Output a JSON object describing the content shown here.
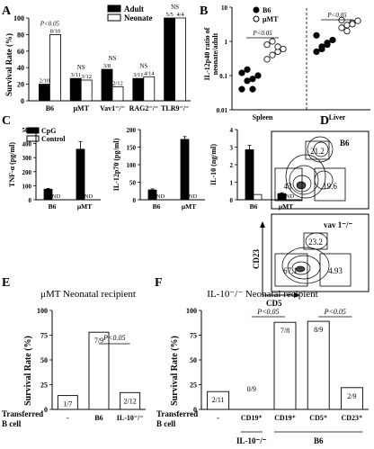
{
  "panels": {
    "a": "A",
    "b": "B",
    "c": "C",
    "d": "D",
    "e": "E",
    "f": "F"
  },
  "chart_data": [
    {
      "id": "A",
      "type": "bar",
      "ylabel": "Survival Rate (%)",
      "ylim": [
        0,
        100
      ],
      "yticks": [
        "0",
        "20",
        "40",
        "60",
        "80",
        "100"
      ],
      "categories": [
        "B6",
        "μMT",
        "Vav1⁻/⁻",
        "RAG2⁻/⁻",
        "TLR9⁻/⁻"
      ],
      "series": [
        {
          "name": "Adult",
          "color": "#000000",
          "values": [
            20,
            27,
            38,
            27,
            100
          ],
          "labels": [
            "2/10",
            "3/11",
            "3/8",
            "3/11",
            "5/5"
          ]
        },
        {
          "name": "Neonate",
          "color": "#ffffff",
          "values": [
            80,
            25,
            17,
            29,
            100
          ],
          "labels": [
            "8/10",
            "3/12",
            "2/12",
            "4/14",
            "4/4"
          ]
        }
      ],
      "annotations": [
        "P<0.05",
        "NS",
        "NS",
        "NS",
        "NS"
      ]
    },
    {
      "id": "B",
      "type": "scatter",
      "ylabel": "IL-12p40 ratio of neonate/adult",
      "yscale": "log",
      "yticks": [
        "0.01",
        "0.1",
        "1",
        "10"
      ],
      "categories": [
        "Spleen",
        "Liver"
      ],
      "series": [
        {
          "name": "B6",
          "marker": "filled",
          "values_spleen": [
            0.04,
            0.07,
            0.08,
            0.1,
            0.12,
            0.15,
            0.04
          ],
          "values_liver": [
            0.5,
            0.7,
            0.9,
            1.1,
            1.5,
            0.6,
            0.8
          ]
        },
        {
          "name": "μMT",
          "marker": "open",
          "values_spleen": [
            0.3,
            0.4,
            0.5,
            0.6,
            0.8,
            1.0,
            0.7
          ],
          "values_liver": [
            2.5,
            3.0,
            3.5,
            4.0,
            4.2,
            2.0,
            3.2
          ]
        }
      ],
      "annotations": [
        "P<0.05",
        "P<0.05"
      ]
    },
    {
      "id": "C1",
      "type": "bar",
      "ylabel": "TNF-α (pg/ml)",
      "ylim": [
        0,
        500
      ],
      "yticks": [
        "0",
        "100",
        "200",
        "300",
        "400",
        "500"
      ],
      "categories": [
        "B6",
        "μMT"
      ],
      "series": [
        {
          "name": "CpG",
          "color": "#000000",
          "values": [
            75,
            360
          ],
          "errors": [
            5,
            55
          ]
        },
        {
          "name": "Control",
          "color": "#ffffff",
          "values": [
            0,
            0
          ]
        }
      ],
      "nd_labels": [
        "ND",
        "ND"
      ]
    },
    {
      "id": "C2",
      "type": "bar",
      "ylabel": "IL-12p70 (pg/ml)",
      "ylim": [
        0,
        200
      ],
      "yticks": [
        "0",
        "50",
        "100",
        "150",
        "200"
      ],
      "categories": [
        "B6",
        "μMT"
      ],
      "series": [
        {
          "name": "CpG",
          "color": "#000000",
          "values": [
            28,
            172
          ],
          "errors": [
            3,
            8
          ]
        },
        {
          "name": "Control",
          "color": "#ffffff",
          "values": [
            0,
            0
          ]
        }
      ],
      "nd_labels": [
        "ND",
        "ND"
      ]
    },
    {
      "id": "C3",
      "type": "bar",
      "ylabel": "IL-10 (ng/ml)",
      "ylim": [
        0,
        4
      ],
      "yticks": [
        "0",
        "1",
        "2",
        "3",
        "4"
      ],
      "categories": [
        "B6",
        "μMT"
      ],
      "series": [
        {
          "name": "CpG",
          "color": "#000000",
          "values": [
            2.85,
            0.35
          ],
          "errors": [
            0.25,
            0.05
          ]
        },
        {
          "name": "Control",
          "color": "#ffffff",
          "values": [
            0.3,
            0
          ]
        }
      ],
      "nd_labels": [
        "ND"
      ]
    },
    {
      "id": "D",
      "type": "heatmap",
      "xlabel": "CD5",
      "ylabel": "CD23",
      "plots": [
        {
          "title": "B6",
          "gates": [
            "21.2",
            "43",
            "19.6"
          ]
        },
        {
          "title": "vav 1⁻/⁻",
          "gates": [
            "23.2",
            "67.1",
            "4.93"
          ]
        }
      ]
    },
    {
      "id": "E",
      "type": "bar",
      "title": "μMT Neonatal recipient",
      "ylabel": "Survival Rate (%)",
      "ylim": [
        0,
        100
      ],
      "yticks": [
        "0",
        "25",
        "50",
        "75",
        "100"
      ],
      "xheader": "Transferred B cell",
      "categories": [
        "-",
        "B6",
        "IL-10⁻/⁻"
      ],
      "values": [
        14,
        78,
        17
      ],
      "labels": [
        "1/7",
        "7/9",
        "2/12"
      ],
      "annotations": [
        "P<0.05"
      ]
    },
    {
      "id": "F",
      "type": "bar",
      "title": "IL-10⁻/⁻ Neonatal recipient",
      "ylabel": "Survival Rate (%)",
      "ylim": [
        0,
        100
      ],
      "yticks": [
        "0",
        "25",
        "50",
        "75",
        "100"
      ],
      "xheader": "Transferred B cell",
      "categories": [
        "-",
        "CD19⁺",
        "CD19⁺",
        "CD5⁺",
        "CD23⁺"
      ],
      "groups": [
        "IL-10⁻/⁻",
        "B6"
      ],
      "values": [
        18,
        0,
        88,
        89,
        22
      ],
      "labels": [
        "2/11",
        "0/9",
        "7/8",
        "8/9",
        "2/9"
      ],
      "annotations": [
        "P<0.05",
        "P<0.05"
      ]
    }
  ]
}
